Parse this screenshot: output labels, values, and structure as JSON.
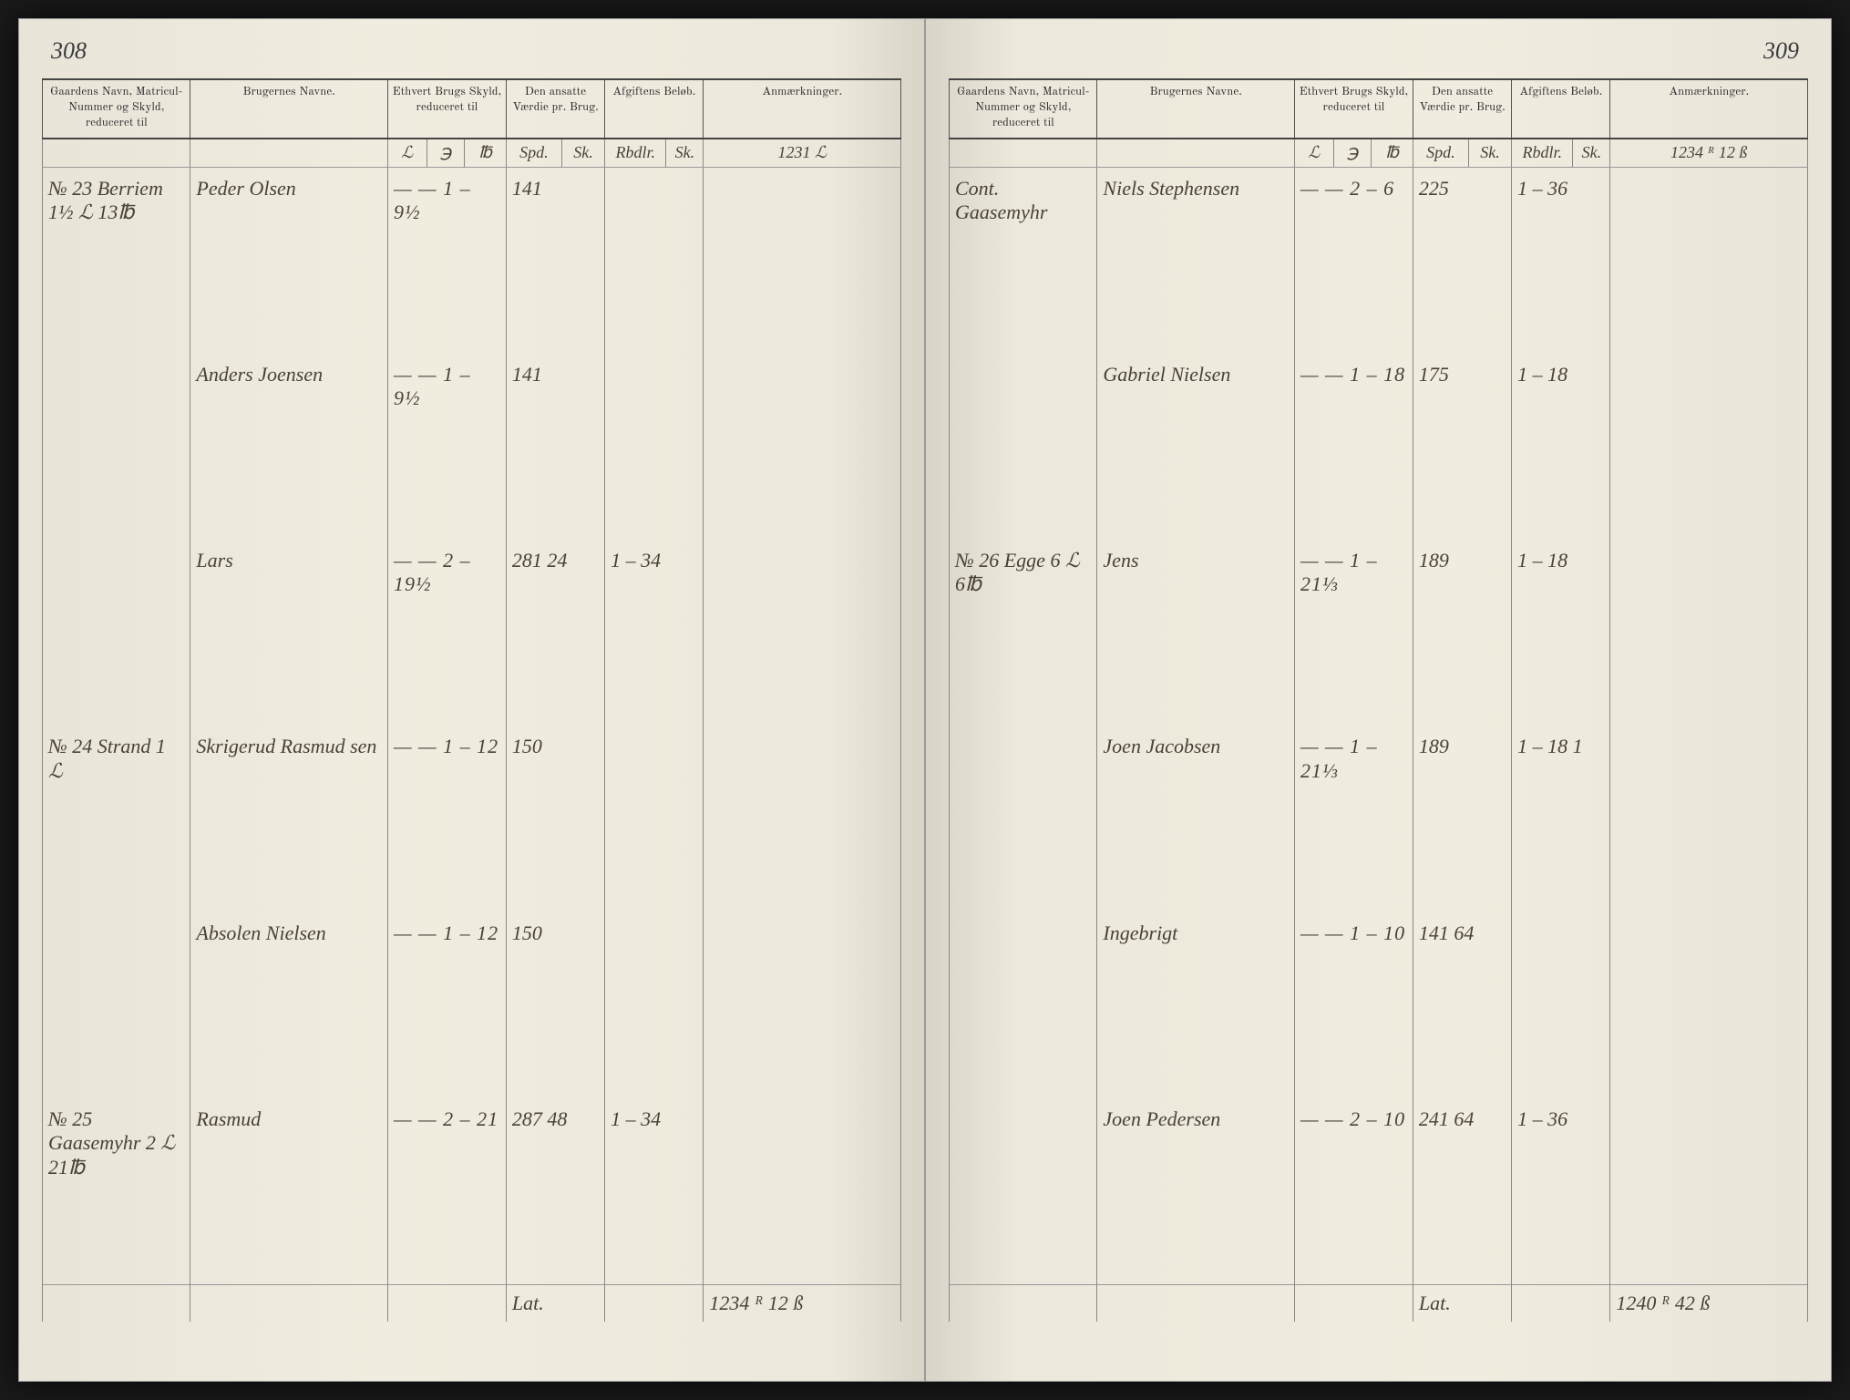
{
  "leftPage": {
    "pageNumber": "308",
    "headers": {
      "gaard": "Gaardens Navn, Matricul-Nummer og Skyld, reduceret til",
      "bruger": "Brugernes Navne.",
      "skyld": "Ethvert Brugs Skyld, reduceret til",
      "vaerdie": "Den ansatte Værdie pr. Brug.",
      "afgift": "Afgiftens Beløb.",
      "anm": "Anmærkninger."
    },
    "subHeaders": {
      "skyld1": "ℒ",
      "skyld2": "℈",
      "skyld3": "℔",
      "vaerdie1": "Spd.",
      "vaerdie2": "Sk.",
      "afgift1": "Rbdlr.",
      "afgift2": "Sk."
    },
    "carryForward": "1231 ℒ",
    "rows": [
      {
        "gaard": "№ 23 Berriem 1½ ℒ 13℔",
        "bruger": "Peder Olsen",
        "skyld": "— — 1 – 9½",
        "vaerdie": "141",
        "afgift": ""
      },
      {
        "gaard": "",
        "bruger": "Anders Joensen",
        "skyld": "— — 1 – 9½",
        "vaerdie": "141",
        "afgift": ""
      },
      {
        "gaard": "",
        "bruger": "Lars",
        "skyld": "— — 2 – 19½",
        "vaerdie": "281  24",
        "afgift": "1 – 34"
      },
      {
        "gaard": "№ 24 Strand 1 ℒ",
        "bruger": "Skrigerud Rasmud sen",
        "skyld": "— — 1 – 12",
        "vaerdie": "150",
        "afgift": ""
      },
      {
        "gaard": "",
        "bruger": "Absolen Nielsen",
        "skyld": "— — 1 – 12",
        "vaerdie": "150",
        "afgift": ""
      },
      {
        "gaard": "№ 25 Gaasemyhr 2 ℒ 21℔",
        "bruger": "Rasmud",
        "skyld": "— — 2 – 21",
        "vaerdie": "287  48",
        "afgift": "1 – 34"
      }
    ],
    "footer": {
      "label": "Lat.",
      "value": "1234 ᴿ 12 ß"
    }
  },
  "rightPage": {
    "pageNumber": "309",
    "headers": {
      "gaard": "Gaardens Navn, Matricul-Nummer og Skyld, reduceret til",
      "bruger": "Brugernes Navne.",
      "skyld": "Ethvert Brugs Skyld, reduceret til",
      "vaerdie": "Den ansatte Værdie pr. Brug.",
      "afgift": "Afgiftens Beløb.",
      "anm": "Anmærkninger."
    },
    "subHeaders": {
      "skyld1": "ℒ",
      "skyld2": "℈",
      "skyld3": "℔",
      "vaerdie1": "Spd.",
      "vaerdie2": "Sk.",
      "afgift1": "Rbdlr.",
      "afgift2": "Sk."
    },
    "carryForward": "1234 ᴿ 12 ß",
    "rows": [
      {
        "gaard": "Cont. Gaasemyhr",
        "bruger": "Niels Stephensen",
        "skyld": "— — 2 – 6",
        "vaerdie": "225",
        "afgift": "1 – 36"
      },
      {
        "gaard": "",
        "bruger": "Gabriel Nielsen",
        "skyld": "— — 1 – 18",
        "vaerdie": "175",
        "afgift": "1 – 18"
      },
      {
        "gaard": "№ 26 Egge 6 ℒ 6℔",
        "bruger": "Jens",
        "skyld": "— — 1 – 21⅓",
        "vaerdie": "189",
        "afgift": "1 – 18"
      },
      {
        "gaard": "",
        "bruger": "Joen Jacobsen",
        "skyld": "— — 1 – 21⅓",
        "vaerdie": "189",
        "afgift": "1 – 18  1"
      },
      {
        "gaard": "",
        "bruger": "Ingebrigt",
        "skyld": "— — 1 – 10",
        "vaerdie": "141  64",
        "afgift": ""
      },
      {
        "gaard": "",
        "bruger": "Joen Pedersen",
        "skyld": "— — 2 – 10",
        "vaerdie": "241  64",
        "afgift": "1 – 36"
      }
    ],
    "footer": {
      "label": "Lat.",
      "value": "1240 ᴿ 42 ß"
    }
  },
  "colors": {
    "paper": "#f0ecdf",
    "paperEdge": "#e8e4d8",
    "ink": "#3a3228",
    "rule": "#888888",
    "headerRule": "#444444"
  }
}
